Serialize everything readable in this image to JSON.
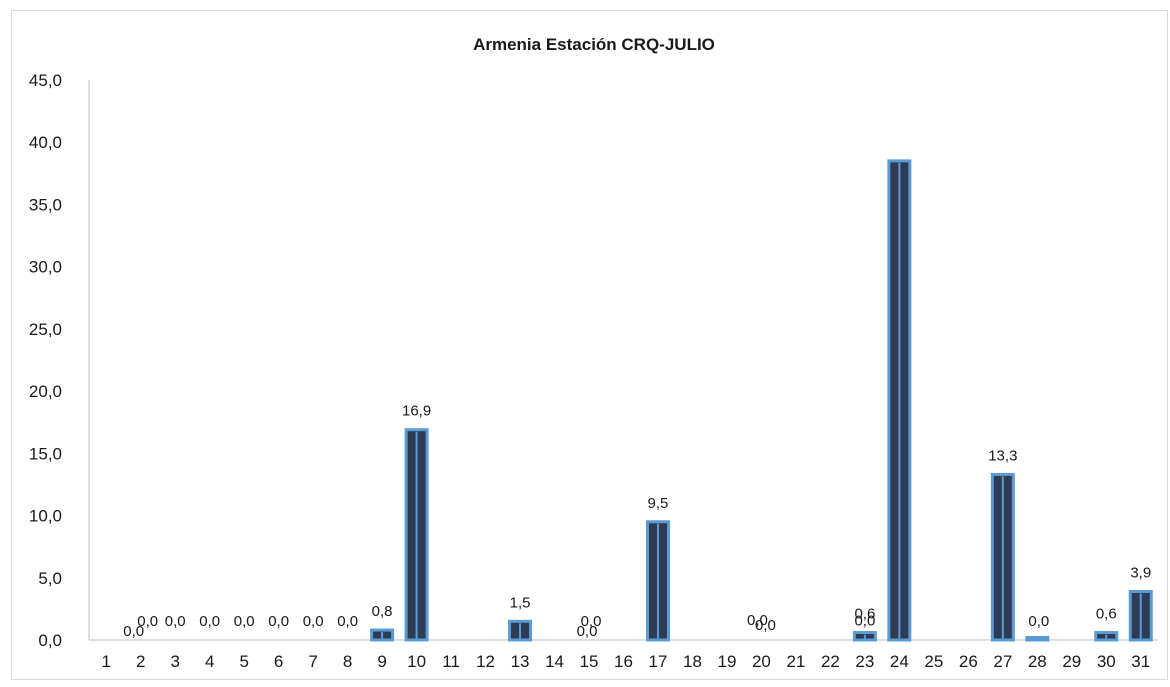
{
  "chart_data": {
    "type": "bar",
    "title": "Armenia Estación CRQ-JULIO",
    "xlabel": "",
    "ylabel": "",
    "ylim": [
      0,
      45
    ],
    "yticks": [
      "0,0",
      "5,0",
      "10,0",
      "15,0",
      "20,0",
      "25,0",
      "30,0",
      "35,0",
      "40,0",
      "45,0"
    ],
    "categories": [
      "1",
      "2",
      "3",
      "4",
      "5",
      "6",
      "7",
      "8",
      "9",
      "10",
      "11",
      "12",
      "13",
      "14",
      "15",
      "16",
      "17",
      "18",
      "19",
      "20",
      "21",
      "22",
      "23",
      "24",
      "25",
      "26",
      "27",
      "28",
      "29",
      "30",
      "31"
    ],
    "values": [
      0,
      0,
      0,
      0,
      0,
      0,
      0,
      0,
      0.8,
      16.9,
      0,
      0,
      1.5,
      0,
      0,
      0,
      9.5,
      0,
      0,
      0,
      0,
      0,
      0.6,
      38.5,
      0,
      0,
      13.3,
      0.2,
      0,
      0.6,
      3.9
    ],
    "data_labels": [
      {
        "day": "2",
        "text": "0,0"
      },
      {
        "day": "2",
        "text": "0,0"
      },
      {
        "day": "3",
        "text": "0,0"
      },
      {
        "day": "4",
        "text": "0,0"
      },
      {
        "day": "5",
        "text": "0,0"
      },
      {
        "day": "6",
        "text": "0,0"
      },
      {
        "day": "7",
        "text": "0,0"
      },
      {
        "day": "8",
        "text": "0,0"
      },
      {
        "day": "9",
        "text": "0,8"
      },
      {
        "day": "10",
        "text": "16,9"
      },
      {
        "day": "13",
        "text": "1,5"
      },
      {
        "day": "15",
        "text": "0,0"
      },
      {
        "day": "15",
        "text": "0,0"
      },
      {
        "day": "17",
        "text": "9,5"
      },
      {
        "day": "20",
        "text": "0,0"
      },
      {
        "day": "20",
        "text": "0,0"
      },
      {
        "day": "23",
        "text": "0,6"
      },
      {
        "day": "23",
        "text": "0,0"
      },
      {
        "day": "27",
        "text": "13,3"
      },
      {
        "day": "29",
        "text": "0,0"
      },
      {
        "day": "30",
        "text": "0,6"
      },
      {
        "day": "31",
        "text": "3,9"
      }
    ],
    "grid": false,
    "legend": "none",
    "colors": {
      "bar_fill": "#2e3b52",
      "bar_edge": "#5b9bd5",
      "axis": "#bfbfbf",
      "text": "#1a1a1a"
    }
  }
}
